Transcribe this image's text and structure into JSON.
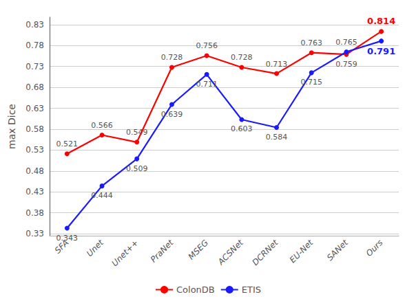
{
  "chart_data": {
    "type": "line",
    "ylabel": "max Dice",
    "categories": [
      "SFA",
      "Unet",
      "Unet++",
      "PraNet",
      "MSEG",
      "ACSNet",
      "DCRNet",
      "EU-Net",
      "SANet",
      "Ours"
    ],
    "series": [
      {
        "name": "ColonDB",
        "color": "#ff0000",
        "marker": "circle",
        "values": [
          0.521,
          0.566,
          0.549,
          0.728,
          0.756,
          0.728,
          0.713,
          0.763,
          0.759,
          0.814
        ]
      },
      {
        "name": "ETIS",
        "color": "#1a1aff",
        "marker": "circle",
        "values": [
          0.343,
          0.444,
          0.509,
          0.639,
          0.711,
          0.603,
          0.584,
          0.715,
          0.765,
          0.791
        ]
      }
    ],
    "ylim": [
      0.325,
      0.848
    ],
    "yticks": [
      0.33,
      0.38,
      0.43,
      0.48,
      0.53,
      0.58,
      0.63,
      0.68,
      0.73,
      0.78,
      0.83
    ],
    "grid": true,
    "legend": "bottom",
    "data_labels": true
  }
}
